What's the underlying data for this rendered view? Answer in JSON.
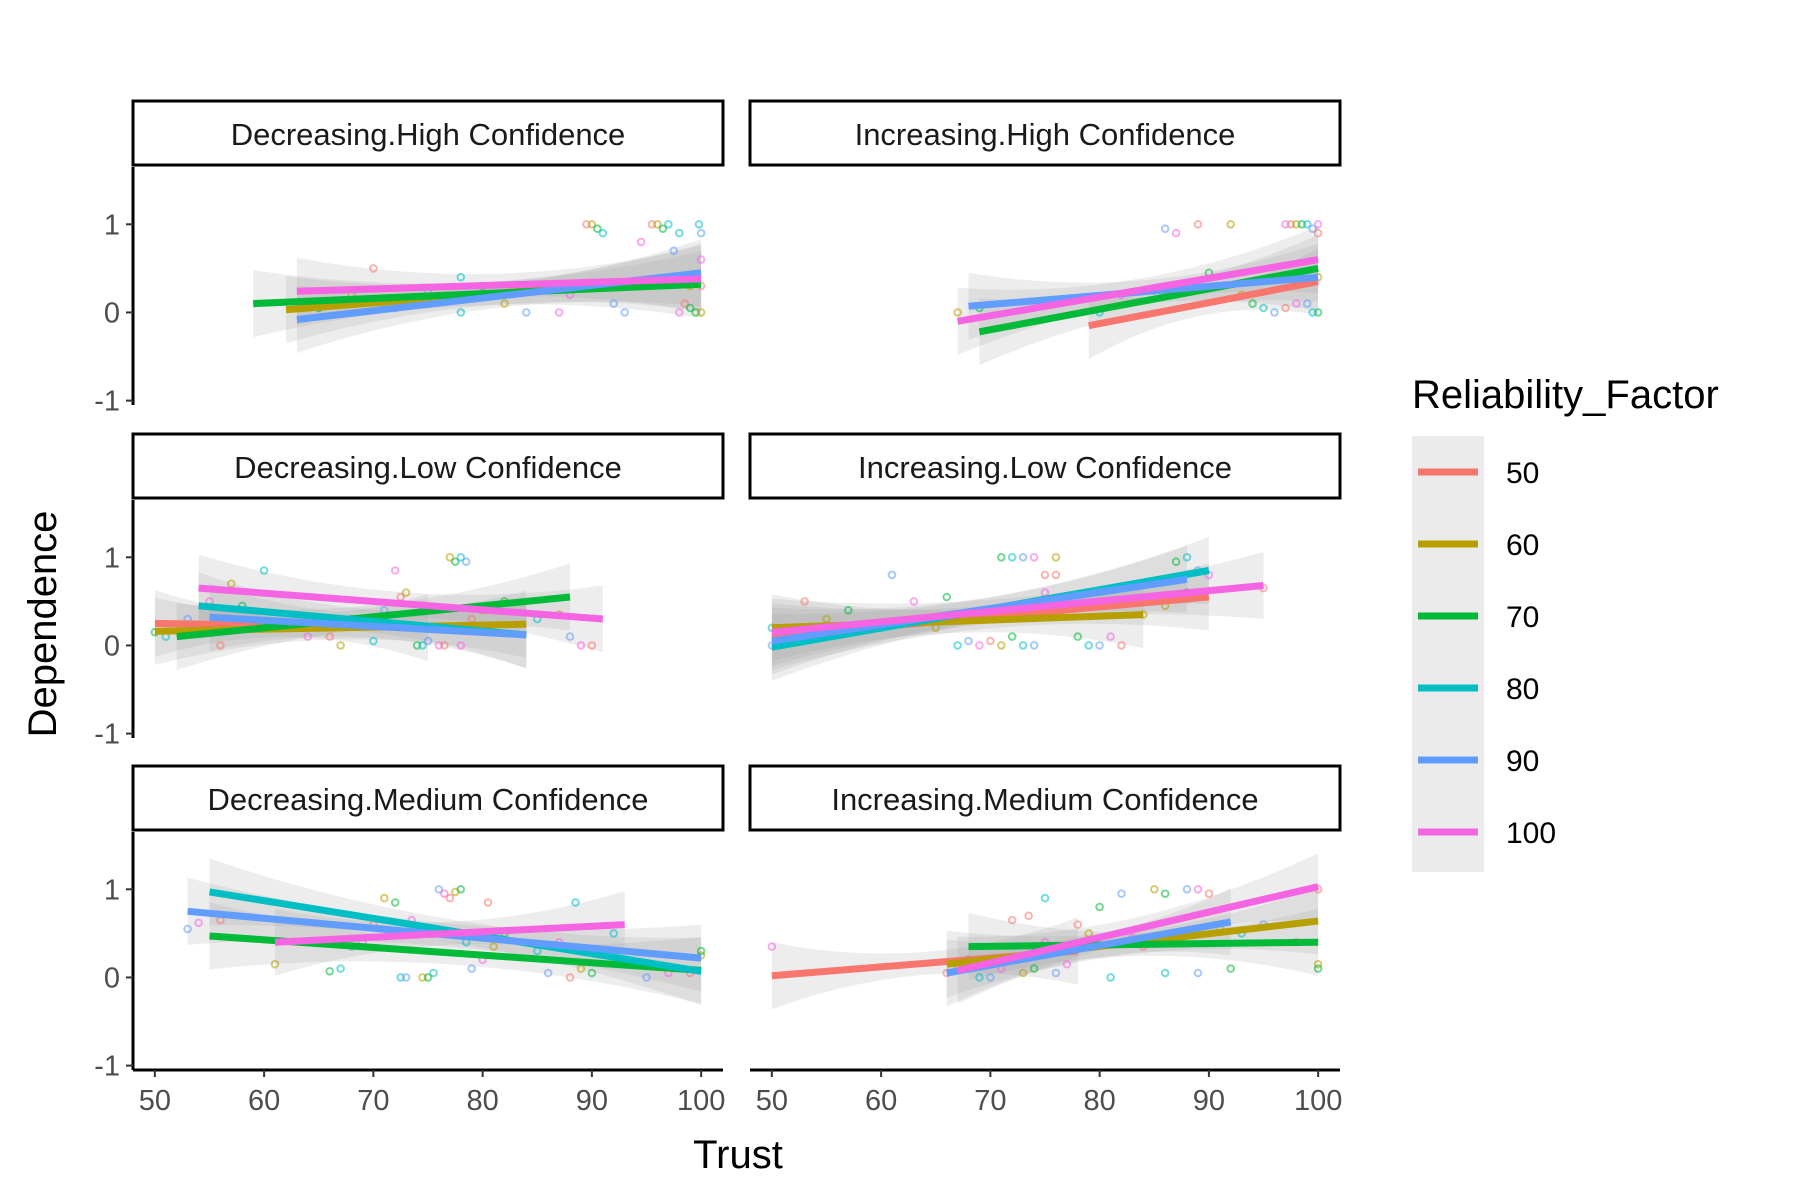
{
  "chart_data": {
    "type": "scatter",
    "title": "",
    "xlabel": "Trust",
    "ylabel": "Dependence",
    "xlim": [
      48,
      102
    ],
    "ylim": [
      -1.05,
      1.65
    ],
    "x_ticks": [
      50,
      60,
      70,
      80,
      90,
      100
    ],
    "y_ticks": [
      -1,
      0,
      1
    ],
    "grid": false,
    "legend": {
      "title": "Reliability_Factor",
      "placement": "right",
      "entries": [
        {
          "label": "50",
          "color": "#F8766D"
        },
        {
          "label": "60",
          "color": "#B79F00"
        },
        {
          "label": "70",
          "color": "#00BA38"
        },
        {
          "label": "80",
          "color": "#00BFC4"
        },
        {
          "label": "90",
          "color": "#619CFF"
        },
        {
          "label": "100",
          "color": "#F564E3"
        }
      ]
    },
    "panels": [
      {
        "label": "Decreasing.High Confidence",
        "lines": [
          {
            "factor": "60",
            "x": [
              62,
              100
            ],
            "y": [
              0.03,
              0.4
            ]
          },
          {
            "factor": "70",
            "x": [
              59,
              100
            ],
            "y": [
              0.1,
              0.32
            ]
          },
          {
            "factor": "90",
            "x": [
              63,
              100
            ],
            "y": [
              -0.08,
              0.45
            ]
          },
          {
            "factor": "100",
            "x": [
              63,
              100
            ],
            "y": [
              0.24,
              0.38
            ]
          }
        ],
        "points": [
          [
            89.5,
            1
          ],
          [
            90,
            1
          ],
          [
            90.5,
            0.95
          ],
          [
            91,
            0.9
          ],
          [
            93,
            0
          ],
          [
            94.5,
            0.8
          ],
          [
            95.5,
            1
          ],
          [
            96,
            1
          ],
          [
            96.5,
            0.95
          ],
          [
            97,
            1
          ],
          [
            97.5,
            0.7
          ],
          [
            98,
            0
          ],
          [
            98.5,
            0.1
          ],
          [
            99,
            0.3
          ],
          [
            99.5,
            0
          ],
          [
            99.8,
            1
          ],
          [
            100,
            0.9
          ],
          [
            100,
            0.6
          ],
          [
            100,
            0.3
          ],
          [
            100,
            0
          ],
          [
            99,
            0.05
          ],
          [
            98,
            0.9
          ],
          [
            92,
            0.1
          ],
          [
            87,
            0
          ],
          [
            85,
            0.25
          ],
          [
            82,
            0.1
          ],
          [
            80,
            0.3
          ],
          [
            78,
            0
          ],
          [
            75,
            0.25
          ],
          [
            72,
            0.05
          ],
          [
            70,
            0.5
          ],
          [
            68,
            0.2
          ],
          [
            65,
            0.05
          ],
          [
            78,
            0.4
          ],
          [
            84,
            0
          ],
          [
            88,
            0.2
          ]
        ]
      },
      {
        "label": "Increasing.High Confidence",
        "lines": [
          {
            "factor": "50",
            "x": [
              79,
              100
            ],
            "y": [
              -0.15,
              0.35
            ]
          },
          {
            "factor": "70",
            "x": [
              69,
              100
            ],
            "y": [
              -0.22,
              0.5
            ]
          },
          {
            "factor": "90",
            "x": [
              68,
              100
            ],
            "y": [
              0.07,
              0.4
            ]
          },
          {
            "factor": "100",
            "x": [
              67,
              100
            ],
            "y": [
              -0.1,
              0.6
            ]
          }
        ],
        "points": [
          [
            67,
            0
          ],
          [
            69,
            0.05
          ],
          [
            80,
            0
          ],
          [
            86,
            0.95
          ],
          [
            87,
            0.9
          ],
          [
            89,
            1
          ],
          [
            92,
            1
          ],
          [
            94,
            0.1
          ],
          [
            95,
            0.05
          ],
          [
            96,
            0
          ],
          [
            97,
            1
          ],
          [
            97.5,
            1
          ],
          [
            98,
            1
          ],
          [
            98.5,
            1
          ],
          [
            99,
            1
          ],
          [
            99.5,
            0.95
          ],
          [
            100,
            1
          ],
          [
            100,
            0.9
          ],
          [
            100,
            0.4
          ],
          [
            100,
            0
          ],
          [
            99.5,
            0
          ],
          [
            99,
            0.1
          ],
          [
            98,
            0.1
          ],
          [
            97,
            0.05
          ],
          [
            93,
            0.2
          ],
          [
            90,
            0.45
          ],
          [
            88,
            0.3
          ],
          [
            85,
            0.25
          ],
          [
            82,
            0.2
          ]
        ]
      },
      {
        "label": "Decreasing.Low Confidence",
        "lines": [
          {
            "factor": "50",
            "x": [
              50,
              75
            ],
            "y": [
              0.25,
              0.2
            ]
          },
          {
            "factor": "60",
            "x": [
              50,
              84
            ],
            "y": [
              0.16,
              0.24
            ]
          },
          {
            "factor": "70",
            "x": [
              52,
              88
            ],
            "y": [
              0.1,
              0.55
            ]
          },
          {
            "factor": "80",
            "x": [
              54,
              84
            ],
            "y": [
              0.45,
              0.12
            ]
          },
          {
            "factor": "90",
            "x": [
              55,
              84
            ],
            "y": [
              0.32,
              0.12
            ]
          },
          {
            "factor": "100",
            "x": [
              54,
              91
            ],
            "y": [
              0.65,
              0.3
            ]
          }
        ],
        "points": [
          [
            50,
            0.15
          ],
          [
            51,
            0.1
          ],
          [
            53,
            0.3
          ],
          [
            55,
            0.5
          ],
          [
            56,
            0
          ],
          [
            57,
            0.7
          ],
          [
            58,
            0.45
          ],
          [
            60,
            0.85
          ],
          [
            62,
            0.2
          ],
          [
            64,
            0.1
          ],
          [
            66,
            0.1
          ],
          [
            67,
            0
          ],
          [
            68,
            0.3
          ],
          [
            70,
            0.05
          ],
          [
            71,
            0.4
          ],
          [
            72,
            0.85
          ],
          [
            72.5,
            0.55
          ],
          [
            73,
            0.6
          ],
          [
            74,
            0
          ],
          [
            74.5,
            0
          ],
          [
            75,
            0.05
          ],
          [
            76,
            0
          ],
          [
            76.5,
            0
          ],
          [
            77,
            1
          ],
          [
            77.5,
            0.95
          ],
          [
            78,
            1
          ],
          [
            78.5,
            0.95
          ],
          [
            78,
            0
          ],
          [
            79,
            0.3
          ],
          [
            80,
            0.4
          ],
          [
            82,
            0.5
          ],
          [
            85,
            0.3
          ],
          [
            88,
            0.1
          ],
          [
            89,
            0
          ],
          [
            90,
            0
          ],
          [
            87,
            0.35
          ]
        ]
      },
      {
        "label": "Increasing.Low Confidence",
        "lines": [
          {
            "factor": "50",
            "x": [
              50,
              90
            ],
            "y": [
              0.1,
              0.55
            ]
          },
          {
            "factor": "60",
            "x": [
              50,
              84
            ],
            "y": [
              0.2,
              0.35
            ]
          },
          {
            "factor": "80",
            "x": [
              50,
              90
            ],
            "y": [
              -0.02,
              0.85
            ]
          },
          {
            "factor": "90",
            "x": [
              50,
              88
            ],
            "y": [
              0.05,
              0.75
            ]
          },
          {
            "factor": "100",
            "x": [
              50,
              95
            ],
            "y": [
              0.15,
              0.68
            ]
          }
        ],
        "points": [
          [
            50,
            0.2
          ],
          [
            50,
            0
          ],
          [
            51,
            0.1
          ],
          [
            53,
            0.5
          ],
          [
            55,
            0.3
          ],
          [
            57,
            0.4
          ],
          [
            60,
            0.2
          ],
          [
            61,
            0.8
          ],
          [
            63,
            0.5
          ],
          [
            64,
            0.3
          ],
          [
            65,
            0.2
          ],
          [
            66,
            0.55
          ],
          [
            67,
            0
          ],
          [
            68,
            0.05
          ],
          [
            69,
            0
          ],
          [
            70,
            0.05
          ],
          [
            71,
            0
          ],
          [
            72,
            0.1
          ],
          [
            73,
            0
          ],
          [
            74,
            0
          ],
          [
            75,
            0.6
          ],
          [
            76,
            0.8
          ],
          [
            77,
            0.5
          ],
          [
            78,
            0.1
          ],
          [
            79,
            0
          ],
          [
            80,
            0
          ],
          [
            81,
            0.1
          ],
          [
            82,
            0
          ],
          [
            84,
            0.35
          ],
          [
            71,
            1
          ],
          [
            72,
            1
          ],
          [
            73,
            1
          ],
          [
            74,
            1
          ],
          [
            75,
            0.8
          ],
          [
            76,
            1
          ],
          [
            87,
            0.95
          ],
          [
            88,
            1
          ],
          [
            89,
            0.85
          ],
          [
            90,
            0.8
          ],
          [
            95,
            0.65
          ],
          [
            86,
            0.45
          ],
          [
            88,
            0.6
          ]
        ]
      },
      {
        "label": "Decreasing.Medium Confidence",
        "lines": [
          {
            "factor": "70",
            "x": [
              55,
              100
            ],
            "y": [
              0.47,
              0.08
            ]
          },
          {
            "factor": "80",
            "x": [
              55,
              100
            ],
            "y": [
              0.97,
              0.07
            ]
          },
          {
            "factor": "90",
            "x": [
              53,
              100
            ],
            "y": [
              0.75,
              0.22
            ]
          },
          {
            "factor": "100",
            "x": [
              61,
              93
            ],
            "y": [
              0.4,
              0.6
            ]
          }
        ],
        "points": [
          [
            53,
            0.55
          ],
          [
            54,
            0.62
          ],
          [
            56,
            0.65
          ],
          [
            61,
            0.15
          ],
          [
            66,
            0.07
          ],
          [
            67,
            0.1
          ],
          [
            68,
            0.35
          ],
          [
            69,
            0.4
          ],
          [
            70,
            0.6
          ],
          [
            71,
            0.9
          ],
          [
            72,
            0.85
          ],
          [
            72.5,
            0
          ],
          [
            73,
            0
          ],
          [
            73.5,
            0.65
          ],
          [
            74,
            0.55
          ],
          [
            74.5,
            0
          ],
          [
            75,
            0
          ],
          [
            75.5,
            0.05
          ],
          [
            76,
            1
          ],
          [
            76.5,
            0.95
          ],
          [
            77,
            0.9
          ],
          [
            77.5,
            0.97
          ],
          [
            78,
            1
          ],
          [
            78.5,
            0.4
          ],
          [
            79,
            0.1
          ],
          [
            80,
            0.2
          ],
          [
            80.5,
            0.85
          ],
          [
            81,
            0.35
          ],
          [
            82,
            0.5
          ],
          [
            85,
            0.3
          ],
          [
            86,
            0.05
          ],
          [
            87,
            0.4
          ],
          [
            88,
            0
          ],
          [
            89,
            0.1
          ],
          [
            90,
            0.05
          ],
          [
            92,
            0.5
          ],
          [
            95,
            0
          ],
          [
            97,
            0.05
          ],
          [
            99,
            0.05
          ],
          [
            100,
            0.25
          ],
          [
            100,
            0.3
          ],
          [
            88.5,
            0.85
          ]
        ]
      },
      {
        "label": "Increasing.Medium Confidence",
        "lines": [
          {
            "factor": "50",
            "x": [
              50,
              78
            ],
            "y": [
              0.02,
              0.3
            ]
          },
          {
            "factor": "60",
            "x": [
              66,
              100
            ],
            "y": [
              0.15,
              0.64
            ]
          },
          {
            "factor": "70",
            "x": [
              68,
              100
            ],
            "y": [
              0.35,
              0.4
            ]
          },
          {
            "factor": "90",
            "x": [
              66,
              92
            ],
            "y": [
              0.05,
              0.63
            ]
          },
          {
            "factor": "100",
            "x": [
              67,
              100
            ],
            "y": [
              0.08,
              1.03
            ]
          }
        ],
        "points": [
          [
            50,
            0.35
          ],
          [
            66,
            0.05
          ],
          [
            67,
            0.1
          ],
          [
            68,
            0.2
          ],
          [
            69,
            0
          ],
          [
            70,
            0
          ],
          [
            71,
            0.1
          ],
          [
            72,
            0.65
          ],
          [
            73,
            0.05
          ],
          [
            74,
            0.1
          ],
          [
            75,
            0.9
          ],
          [
            76,
            0.05
          ],
          [
            77,
            0.15
          ],
          [
            78,
            0.6
          ],
          [
            79,
            0.5
          ],
          [
            80,
            0.8
          ],
          [
            81,
            0
          ],
          [
            82,
            0.95
          ],
          [
            83,
            0.45
          ],
          [
            84,
            0.35
          ],
          [
            85,
            1
          ],
          [
            86,
            0.95
          ],
          [
            87,
            0.4
          ],
          [
            88,
            1
          ],
          [
            89,
            1
          ],
          [
            90,
            0.95
          ],
          [
            91,
            0.55
          ],
          [
            92,
            0.1
          ],
          [
            93,
            0.5
          ],
          [
            95,
            0.6
          ],
          [
            98,
            0.4
          ],
          [
            100,
            1
          ],
          [
            100,
            0.15
          ],
          [
            100,
            0.1
          ],
          [
            86,
            0.05
          ],
          [
            89,
            0.05
          ],
          [
            75,
            0.4
          ],
          [
            73.5,
            0.7
          ]
        ]
      }
    ]
  }
}
